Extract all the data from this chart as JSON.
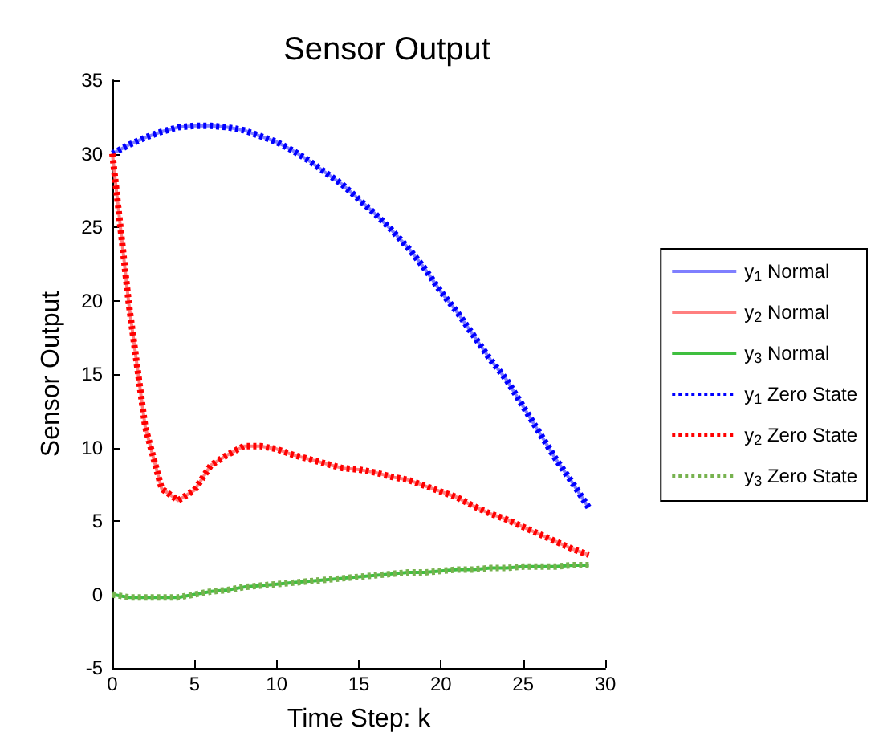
{
  "chart_data": {
    "type": "line",
    "title": "Sensor Output",
    "xlabel": "Time Step: k",
    "ylabel": "Sensor Output",
    "x": [
      0,
      1,
      2,
      3,
      4,
      5,
      6,
      7,
      8,
      9,
      10,
      11,
      12,
      13,
      14,
      15,
      16,
      17,
      18,
      19,
      20,
      21,
      22,
      23,
      24,
      25,
      26,
      27,
      28,
      29
    ],
    "xlim": [
      0,
      30
    ],
    "xticks": [
      0,
      5,
      10,
      15,
      20,
      25,
      30
    ],
    "ylim": [
      -5,
      35
    ],
    "yticks": [
      -5,
      0,
      5,
      10,
      15,
      20,
      25,
      30,
      35
    ],
    "grid": false,
    "legend": "right",
    "marker": "none",
    "series": [
      {
        "name": "y$_{1}$ Normal",
        "color": "#7f7fff",
        "line_style": "solid",
        "values": [
          30,
          30.6,
          31.1,
          31.5,
          31.8,
          31.9,
          31.9,
          31.8,
          31.6,
          31.2,
          30.8,
          30.2,
          29.5,
          28.7,
          27.9,
          26.9,
          25.9,
          24.8,
          23.6,
          22.2,
          20.6,
          19.2,
          17.6,
          16.0,
          14.6,
          12.8,
          11.0,
          9.2,
          7.6,
          5.9
        ]
      },
      {
        "name": "y$_{2}$ Normal",
        "color": "#ff7f7f",
        "line_style": "solid",
        "values": [
          30,
          19.8,
          11.4,
          7.2,
          6.4,
          7.1,
          8.8,
          9.5,
          10.1,
          10.1,
          9.9,
          9.5,
          9.2,
          8.9,
          8.6,
          8.5,
          8.3,
          8.0,
          7.8,
          7.4,
          7.0,
          6.6,
          6.0,
          5.5,
          5.1,
          4.6,
          4.1,
          3.6,
          3.1,
          2.7
        ]
      },
      {
        "name": "y$_{3}$ Normal",
        "color": "#3fbf3f",
        "line_style": "solid",
        "values": [
          0,
          -0.2,
          -0.2,
          -0.2,
          -0.2,
          0,
          0.2,
          0.3,
          0.5,
          0.6,
          0.7,
          0.8,
          0.9,
          1.0,
          1.1,
          1.2,
          1.3,
          1.4,
          1.5,
          1.5,
          1.6,
          1.7,
          1.7,
          1.8,
          1.8,
          1.9,
          1.9,
          1.9,
          2.0,
          2.0
        ]
      },
      {
        "name": "y$_{1}$ Zero State",
        "color": "#0000ff",
        "line_style": "dotted",
        "values": [
          30,
          30.6,
          31.1,
          31.5,
          31.8,
          31.9,
          31.9,
          31.8,
          31.6,
          31.2,
          30.8,
          30.2,
          29.5,
          28.7,
          27.9,
          26.9,
          25.9,
          24.8,
          23.6,
          22.2,
          20.6,
          19.2,
          17.6,
          16.0,
          14.6,
          12.8,
          11.0,
          9.2,
          7.6,
          5.9
        ]
      },
      {
        "name": "y$_{2}$ Zero State",
        "color": "#ff0000",
        "line_style": "dotted",
        "values": [
          30,
          19.8,
          11.4,
          7.2,
          6.4,
          7.1,
          8.8,
          9.5,
          10.1,
          10.1,
          9.9,
          9.5,
          9.2,
          8.9,
          8.6,
          8.5,
          8.3,
          8.0,
          7.8,
          7.4,
          7.0,
          6.6,
          6.0,
          5.5,
          5.1,
          4.6,
          4.1,
          3.6,
          3.1,
          2.7
        ]
      },
      {
        "name": "y$_{3}$ Zero State",
        "color": "#77b24f",
        "line_style": "dotted",
        "values": [
          0,
          -0.2,
          -0.2,
          -0.2,
          -0.2,
          0,
          0.2,
          0.3,
          0.5,
          0.6,
          0.7,
          0.8,
          0.9,
          1.0,
          1.1,
          1.2,
          1.3,
          1.4,
          1.5,
          1.5,
          1.6,
          1.7,
          1.7,
          1.8,
          1.8,
          1.9,
          1.9,
          1.9,
          2.0,
          2.0
        ]
      }
    ]
  }
}
